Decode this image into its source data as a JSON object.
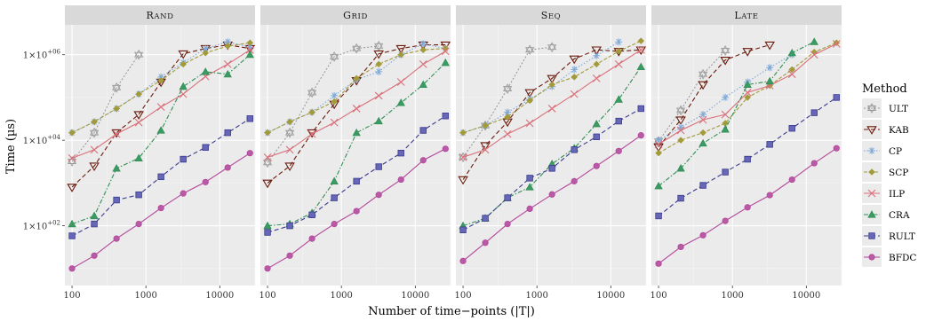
{
  "chart_data": {
    "type": "line",
    "xlabel": "Number of time−points (|T|)",
    "ylabel": "Time (µs)",
    "x_scale": "log",
    "y_scale": "log",
    "xlim": [
      80,
      30000
    ],
    "ylim": [
      4,
      5000000
    ],
    "x_ticks": [
      {
        "value": 100,
        "label": "100"
      },
      {
        "value": 1000,
        "label": "1000"
      },
      {
        "value": 10000,
        "label": "10000"
      }
    ],
    "y_ticks": [
      {
        "value": 100,
        "label": "1×10",
        "sup": "+02"
      },
      {
        "value": 10000,
        "label": "1×10",
        "sup": "+04"
      },
      {
        "value": 1000000,
        "label": "1×10",
        "sup": "+06"
      }
    ],
    "legend": {
      "title": "Method",
      "placement": "right"
    },
    "x": [
      100,
      200,
      400,
      800,
      1600,
      3200,
      6400,
      12800,
      25600
    ],
    "panels": [
      {
        "title": "Rand",
        "series": [
          {
            "name": "ULT",
            "values": [
              3200,
              15000,
              170000,
              1000000,
              null,
              null,
              null,
              null,
              null
            ]
          },
          {
            "name": "KAB",
            "values": [
              800,
              2500,
              15000,
              40000,
              230000,
              1050000,
              1400000,
              1700000,
              1400000
            ]
          },
          {
            "name": "CP",
            "values": [
              15000,
              27000,
              55000,
              120000,
              300000,
              650000,
              1400000,
              2000000,
              1500000
            ]
          },
          {
            "name": "SCP",
            "values": [
              15000,
              27000,
              55000,
              120000,
              250000,
              600000,
              1100000,
              1600000,
              1900000
            ]
          },
          {
            "name": "ILP",
            "values": [
              3800,
              6000,
              14000,
              26000,
              60000,
              120000,
              310000,
              600000,
              1300000
            ]
          },
          {
            "name": "CRA",
            "values": [
              110,
              170,
              2200,
              3800,
              17000,
              180000,
              400000,
              350000,
              1000000
            ]
          },
          {
            "name": "RULT",
            "values": [
              58,
              110,
              400,
              530,
              1400,
              3600,
              6800,
              15000,
              32000
            ]
          },
          {
            "name": "BFDC",
            "values": [
              10,
              20,
              50,
              110,
              260,
              570,
              1050,
              2300,
              5000
            ]
          }
        ]
      },
      {
        "title": "Grid",
        "series": [
          {
            "name": "ULT",
            "values": [
              3000,
              15000,
              130000,
              900000,
              1400000,
              1600000,
              null,
              null,
              null
            ]
          },
          {
            "name": "KAB",
            "values": [
              1000,
              2500,
              15000,
              70000,
              250000,
              1050000,
              1400000,
              1700000,
              1700000
            ]
          },
          {
            "name": "CP",
            "values": [
              15000,
              27000,
              45000,
              110000,
              260000,
              400000,
              1000000,
              1800000,
              1400000
            ]
          },
          {
            "name": "SCP",
            "values": [
              15000,
              27000,
              45000,
              80000,
              280000,
              600000,
              1000000,
              1300000,
              1400000
            ]
          },
          {
            "name": "ILP",
            "values": [
              4000,
              6000,
              14000,
              26000,
              55000,
              110000,
              230000,
              600000,
              1200000
            ]
          },
          {
            "name": "CRA",
            "values": [
              100,
              110,
              200,
              1100,
              15000,
              28000,
              75000,
              200000,
              650000
            ]
          },
          {
            "name": "RULT",
            "values": [
              70,
              100,
              180,
              450,
              1100,
              2400,
              5000,
              17000,
              37000
            ]
          },
          {
            "name": "BFDC",
            "values": [
              10,
              20,
              50,
              110,
              220,
              530,
              1200,
              3400,
              6300
            ]
          }
        ]
      },
      {
        "title": "Seq",
        "series": [
          {
            "name": "ULT",
            "values": [
              4000,
              22000,
              160000,
              1300000,
              1500000,
              null,
              null,
              null,
              null
            ]
          },
          {
            "name": "KAB",
            "values": [
              1200,
              7500,
              27000,
              130000,
              280000,
              800000,
              1300000,
              1200000,
              1300000
            ]
          },
          {
            "name": "CP",
            "values": [
              15000,
              22000,
              45000,
              90000,
              180000,
              450000,
              950000,
              2000000,
              null
            ]
          },
          {
            "name": "SCP",
            "values": [
              15000,
              22000,
              35000,
              85000,
              200000,
              300000,
              600000,
              1200000,
              2100000
            ]
          },
          {
            "name": "ILP",
            "values": [
              4000,
              6000,
              14000,
              25000,
              55000,
              120000,
              280000,
              600000,
              1300000
            ]
          },
          {
            "name": "CRA",
            "values": [
              100,
              150,
              450,
              800,
              2800,
              6500,
              24000,
              90000,
              520000
            ]
          },
          {
            "name": "RULT",
            "values": [
              80,
              150,
              450,
              1300,
              2200,
              6000,
              12000,
              28000,
              55000
            ]
          },
          {
            "name": "BFDC",
            "values": [
              15,
              40,
              110,
              250,
              540,
              1100,
              2500,
              5600,
              13000
            ]
          }
        ]
      },
      {
        "title": "Late",
        "series": [
          {
            "name": "ULT",
            "values": [
              9500,
              50000,
              350000,
              1250000,
              null,
              null,
              null,
              null,
              null
            ]
          },
          {
            "name": "KAB",
            "values": [
              7000,
              30000,
              200000,
              750000,
              1200000,
              1700000,
              null,
              null,
              null
            ]
          },
          {
            "name": "CP",
            "values": [
              10000,
              20000,
              40000,
              100000,
              230000,
              500000,
              1000000,
              null,
              null
            ]
          },
          {
            "name": "SCP",
            "values": [
              5000,
              10000,
              15000,
              25000,
              100000,
              190000,
              450000,
              1150000,
              1900000
            ]
          },
          {
            "name": "ILP",
            "values": [
              8000,
              17000,
              30000,
              40000,
              130000,
              190000,
              350000,
              1000000,
              1800000
            ]
          },
          {
            "name": "CRA",
            "values": [
              850,
              2200,
              8500,
              18000,
              200000,
              240000,
              1100000,
              2000000,
              null
            ]
          },
          {
            "name": "RULT",
            "values": [
              170,
              440,
              880,
              1800,
              3600,
              8000,
              19000,
              44000,
              100000
            ]
          },
          {
            "name": "BFDC",
            "values": [
              13,
              32,
              60,
              130,
              270,
              520,
              1200,
              2900,
              6500
            ]
          }
        ]
      }
    ]
  }
}
